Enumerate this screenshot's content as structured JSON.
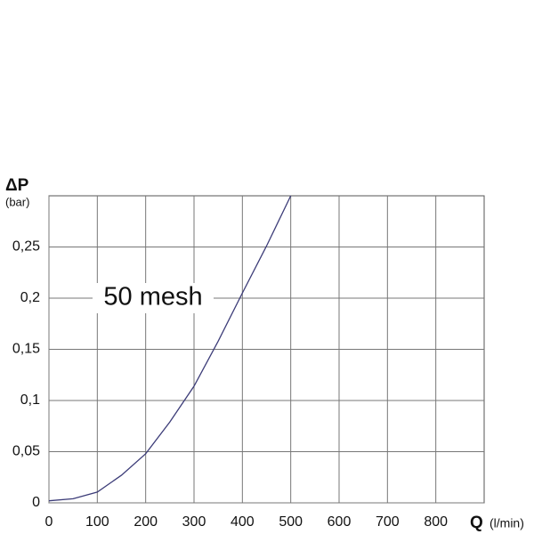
{
  "chart_data": {
    "type": "line",
    "y_label": "ΔP",
    "y_unit": "(bar)",
    "x_label": "Q",
    "x_unit": "(l/min)",
    "annotation": "50 mesh",
    "x": [
      0,
      50,
      100,
      150,
      200,
      250,
      300,
      350,
      400,
      450,
      500
    ],
    "series": [
      {
        "name": "50 mesh",
        "color": "#3c3c78",
        "values": [
          0.002,
          0.004,
          0.0105,
          0.027,
          0.048,
          0.079,
          0.114,
          0.158,
          0.205,
          0.251,
          0.3
        ]
      }
    ],
    "xlim": [
      0,
      900
    ],
    "xticks": [
      0,
      100,
      200,
      300,
      400,
      500,
      600,
      700,
      800
    ],
    "ylim": [
      0,
      0.3
    ],
    "yticks": [
      {
        "value": 0,
        "label": "0"
      },
      {
        "value": 0.05,
        "label": "0,05"
      },
      {
        "value": 0.1,
        "label": "0,1"
      },
      {
        "value": 0.15,
        "label": "0,15"
      },
      {
        "value": 0.2,
        "label": "0,2"
      },
      {
        "value": 0.25,
        "label": "0,25"
      }
    ],
    "grid": true
  }
}
